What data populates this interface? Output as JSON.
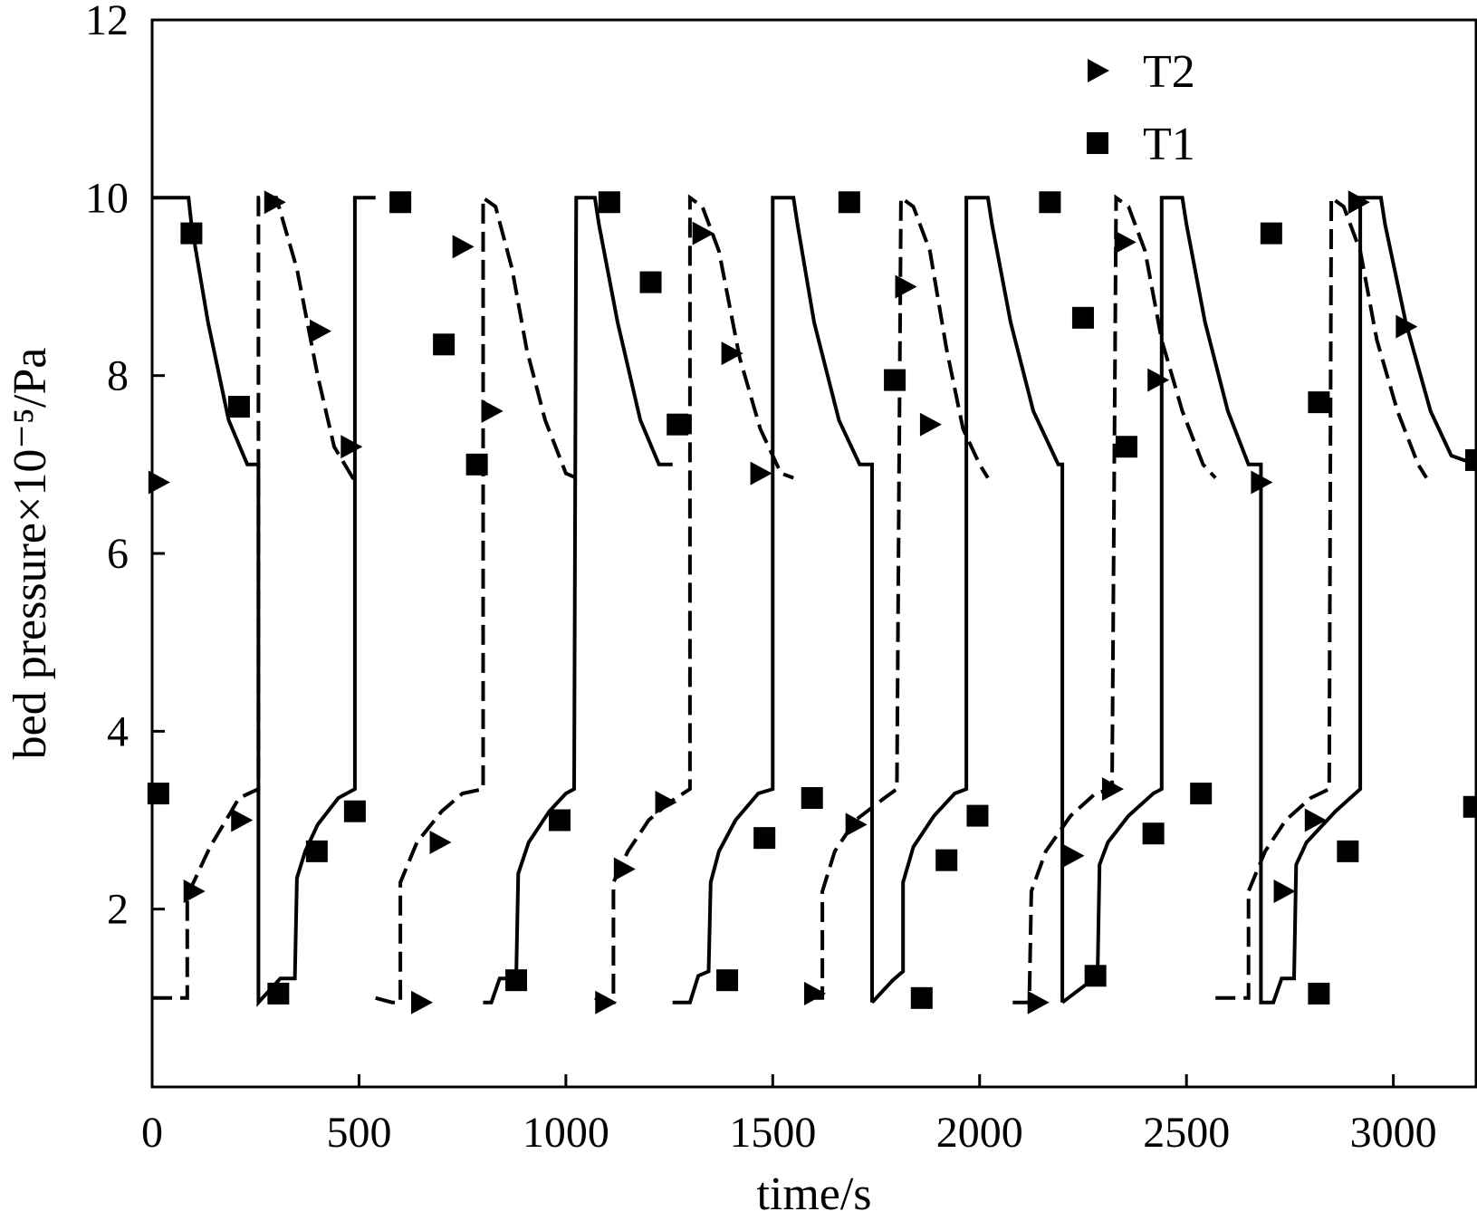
{
  "chart_data": {
    "type": "line",
    "xlabel": "time/s",
    "ylabel": "bed pressure×10⁻⁵/Pa",
    "xlim": [
      0,
      3200
    ],
    "ylim": [
      0,
      12
    ],
    "x_ticks": [
      0,
      500,
      1000,
      1500,
      2000,
      2500,
      3000
    ],
    "x_tick_labels": [
      "0",
      "500",
      "1000",
      "1500",
      "2000",
      "2500",
      "3000"
    ],
    "y_ticks": [
      2,
      4,
      6,
      8,
      10,
      12
    ],
    "y_tick_labels": [
      "2",
      "4",
      "6",
      "8",
      "10",
      "12"
    ],
    "grid": false,
    "legend_position": "top-right",
    "legend": [
      "T2",
      "T1"
    ],
    "series": [
      {
        "name": "T1",
        "marker": "square",
        "segments": [
          {
            "style": "solid",
            "points": [
              [
                0,
                10
              ],
              [
                88,
                10
              ],
              [
                95,
                9.7
              ],
              [
                135,
                8.6
              ],
              [
                185,
                7.5
              ],
              [
                230,
                7.0
              ],
              [
                257,
                7.0
              ],
              [
                257,
                0.95
              ],
              [
                310,
                1.22
              ],
              [
                345,
                1.22
              ],
              [
                350,
                2.35
              ],
              [
                370,
                2.65
              ],
              [
                400,
                2.95
              ],
              [
                450,
                3.25
              ],
              [
                490,
                3.35
              ],
              [
                490,
                10
              ],
              [
                540,
                10
              ]
            ]
          },
          {
            "style": "solid",
            "points": [
              [
                800,
                0.95
              ],
              [
                820,
                0.95
              ],
              [
                840,
                1.22
              ],
              [
                880,
                1.22
              ],
              [
                885,
                2.4
              ],
              [
                910,
                2.75
              ],
              [
                960,
                3.1
              ],
              [
                1000,
                3.3
              ],
              [
                1020,
                3.35
              ],
              [
                1025,
                10
              ],
              [
                1070,
                10
              ],
              [
                1080,
                9.7
              ],
              [
                1125,
                8.6
              ],
              [
                1180,
                7.5
              ],
              [
                1225,
                7.0
              ],
              [
                1258,
                7.0
              ]
            ]
          },
          {
            "style": "solid",
            "points": [
              [
                1258,
                0.95
              ],
              [
                1300,
                0.95
              ],
              [
                1320,
                1.25
              ],
              [
                1345,
                1.3
              ],
              [
                1350,
                2.3
              ],
              [
                1370,
                2.65
              ],
              [
                1410,
                3.0
              ],
              [
                1465,
                3.3
              ],
              [
                1500,
                3.35
              ],
              [
                1500,
                10
              ],
              [
                1550,
                10
              ],
              [
                1560,
                9.7
              ],
              [
                1600,
                8.6
              ],
              [
                1660,
                7.5
              ],
              [
                1710,
                7.0
              ],
              [
                1740,
                7.0
              ],
              [
                1740,
                0.95
              ]
            ]
          },
          {
            "style": "solid",
            "points": [
              [
                1740,
                0.95
              ],
              [
                1790,
                1.2
              ],
              [
                1815,
                1.3
              ],
              [
                1815,
                2.3
              ],
              [
                1840,
                2.7
              ],
              [
                1890,
                3.05
              ],
              [
                1940,
                3.3
              ],
              [
                1968,
                3.35
              ],
              [
                1968,
                10
              ],
              [
                2020,
                10
              ],
              [
                2030,
                9.7
              ],
              [
                2075,
                8.6
              ],
              [
                2130,
                7.6
              ],
              [
                2190,
                7.0
              ],
              [
                2200,
                7.0
              ],
              [
                2200,
                0.95
              ]
            ]
          },
          {
            "style": "solid",
            "points": [
              [
                2200,
                0.95
              ],
              [
                2285,
                1.25
              ],
              [
                2290,
                2.5
              ],
              [
                2310,
                2.75
              ],
              [
                2360,
                3.05
              ],
              [
                2420,
                3.3
              ],
              [
                2440,
                3.35
              ],
              [
                2440,
                10
              ],
              [
                2490,
                10
              ],
              [
                2500,
                9.7
              ],
              [
                2545,
                8.6
              ],
              [
                2600,
                7.6
              ],
              [
                2650,
                7.0
              ],
              [
                2680,
                7.0
              ],
              [
                2680,
                0.95
              ],
              [
                2710,
                0.95
              ],
              [
                2730,
                1.22
              ],
              [
                2760,
                1.22
              ],
              [
                2765,
                2.5
              ],
              [
                2790,
                2.75
              ],
              [
                2860,
                3.1
              ],
              [
                2920,
                3.35
              ],
              [
                2920,
                10
              ],
              [
                2970,
                10
              ],
              [
                2980,
                9.7
              ],
              [
                3030,
                8.6
              ],
              [
                3090,
                7.6
              ],
              [
                3140,
                7.1
              ],
              [
                3200,
                7.0
              ]
            ]
          }
        ],
        "markers": [
          [
            15,
            3.3
          ],
          [
            95,
            9.6
          ],
          [
            210,
            7.65
          ],
          [
            305,
            1.05
          ],
          [
            398,
            2.65
          ],
          [
            490,
            3.1
          ],
          [
            600,
            9.95
          ],
          [
            705,
            8.35
          ],
          [
            785,
            7.0
          ],
          [
            880,
            1.2
          ],
          [
            985,
            3.0
          ],
          [
            1105,
            9.95
          ],
          [
            1205,
            9.05
          ],
          [
            1270,
            7.45
          ],
          [
            1390,
            1.2
          ],
          [
            1480,
            2.8
          ],
          [
            1595,
            3.25
          ],
          [
            1685,
            9.95
          ],
          [
            1795,
            7.95
          ],
          [
            1860,
            1.0
          ],
          [
            1920,
            2.55
          ],
          [
            1995,
            3.05
          ],
          [
            2170,
            9.95
          ],
          [
            2250,
            8.65
          ],
          [
            2280,
            1.25
          ],
          [
            2355,
            7.2
          ],
          [
            2420,
            2.85
          ],
          [
            2535,
            3.3
          ],
          [
            2705,
            9.6
          ],
          [
            2820,
            7.7
          ],
          [
            2820,
            1.05
          ],
          [
            2890,
            2.65
          ],
          [
            3195,
            3.15
          ],
          [
            3200,
            7.05
          ]
        ]
      },
      {
        "name": "T2",
        "marker": "triangle-right",
        "segments": [
          {
            "style": "dashed",
            "points": [
              [
                0,
                1.0
              ],
              [
                85,
                1.0
              ],
              [
                85,
                2.15
              ],
              [
                140,
                2.7
              ],
              [
                185,
                3.05
              ],
              [
                210,
                3.25
              ],
              [
                257,
                3.35
              ],
              [
                257,
                10
              ],
              [
                300,
                10
              ],
              [
                350,
                9.2
              ],
              [
                400,
                8.0
              ],
              [
                440,
                7.2
              ],
              [
                485,
                6.85
              ],
              [
                490,
                6.85
              ]
            ]
          },
          {
            "style": "dashed",
            "points": [
              [
                540,
                1.0
              ],
              [
                580,
                0.95
              ],
              [
                600,
                0.95
              ],
              [
                600,
                2.3
              ],
              [
                640,
                2.75
              ],
              [
                700,
                3.1
              ],
              [
                750,
                3.3
              ],
              [
                800,
                3.35
              ],
              [
                800,
                10
              ],
              [
                830,
                9.9
              ],
              [
                870,
                9.2
              ],
              [
                905,
                8.3
              ],
              [
                950,
                7.5
              ],
              [
                1000,
                6.9
              ],
              [
                1025,
                6.85
              ]
            ]
          },
          {
            "style": "dashed",
            "points": [
              [
                1070,
                1.0
              ],
              [
                1100,
                0.95
              ],
              [
                1115,
                0.95
              ],
              [
                1115,
                2.3
              ],
              [
                1150,
                2.65
              ],
              [
                1200,
                3.0
              ],
              [
                1250,
                3.2
              ],
              [
                1300,
                3.35
              ],
              [
                1300,
                10
              ],
              [
                1330,
                9.9
              ],
              [
                1370,
                9.4
              ],
              [
                1420,
                8.2
              ],
              [
                1470,
                7.4
              ],
              [
                1520,
                6.9
              ],
              [
                1550,
                6.85
              ]
            ]
          },
          {
            "style": "dashed",
            "points": [
              [
                1600,
                1.0
              ],
              [
                1620,
                1.0
              ],
              [
                1620,
                2.2
              ],
              [
                1650,
                2.65
              ],
              [
                1700,
                3.0
              ],
              [
                1770,
                3.25
              ],
              [
                1800,
                3.35
              ],
              [
                1810,
                10
              ],
              [
                1840,
                9.9
              ],
              [
                1880,
                9.4
              ],
              [
                1920,
                8.3
              ],
              [
                1960,
                7.4
              ],
              [
                2000,
                7.0
              ],
              [
                2020,
                6.85
              ]
            ]
          },
          {
            "style": "dashed",
            "points": [
              [
                2080,
                0.95
              ],
              [
                2120,
                0.95
              ],
              [
                2125,
                2.2
              ],
              [
                2160,
                2.65
              ],
              [
                2220,
                3.05
              ],
              [
                2280,
                3.3
              ],
              [
                2320,
                3.35
              ],
              [
                2330,
                10
              ],
              [
                2360,
                9.9
              ],
              [
                2400,
                9.4
              ],
              [
                2440,
                8.4
              ],
              [
                2490,
                7.6
              ],
              [
                2540,
                7.0
              ],
              [
                2570,
                6.85
              ]
            ]
          },
          {
            "style": "dashed",
            "points": [
              [
                2570,
                1.0
              ],
              [
                2650,
                1.0
              ],
              [
                2650,
                2.2
              ],
              [
                2690,
                2.65
              ],
              [
                2740,
                3.0
              ],
              [
                2800,
                3.25
              ],
              [
                2845,
                3.35
              ],
              [
                2850,
                10
              ],
              [
                2880,
                9.9
              ],
              [
                2920,
                9.4
              ],
              [
                2960,
                8.4
              ],
              [
                3010,
                7.6
              ],
              [
                3060,
                7.0
              ],
              [
                3080,
                6.85
              ]
            ]
          }
        ],
        "markers": [
          [
            15,
            6.8
          ],
          [
            100,
            2.2
          ],
          [
            215,
            3.0
          ],
          [
            295,
            9.95
          ],
          [
            405,
            8.5
          ],
          [
            480,
            7.2
          ],
          [
            650,
            0.95
          ],
          [
            695,
            2.75
          ],
          [
            750,
            9.45
          ],
          [
            820,
            7.6
          ],
          [
            1095,
            0.95
          ],
          [
            1140,
            2.45
          ],
          [
            1240,
            3.2
          ],
          [
            1330,
            9.6
          ],
          [
            1400,
            8.25
          ],
          [
            1470,
            6.9
          ],
          [
            1600,
            1.05
          ],
          [
            1700,
            2.95
          ],
          [
            1820,
            9.0
          ],
          [
            1880,
            7.45
          ],
          [
            2140,
            0.95
          ],
          [
            2225,
            2.6
          ],
          [
            2320,
            3.35
          ],
          [
            2350,
            9.5
          ],
          [
            2430,
            7.95
          ],
          [
            2680,
            6.8
          ],
          [
            2735,
            2.2
          ],
          [
            2810,
            3.0
          ],
          [
            2915,
            9.95
          ],
          [
            3030,
            8.55
          ]
        ]
      }
    ]
  }
}
